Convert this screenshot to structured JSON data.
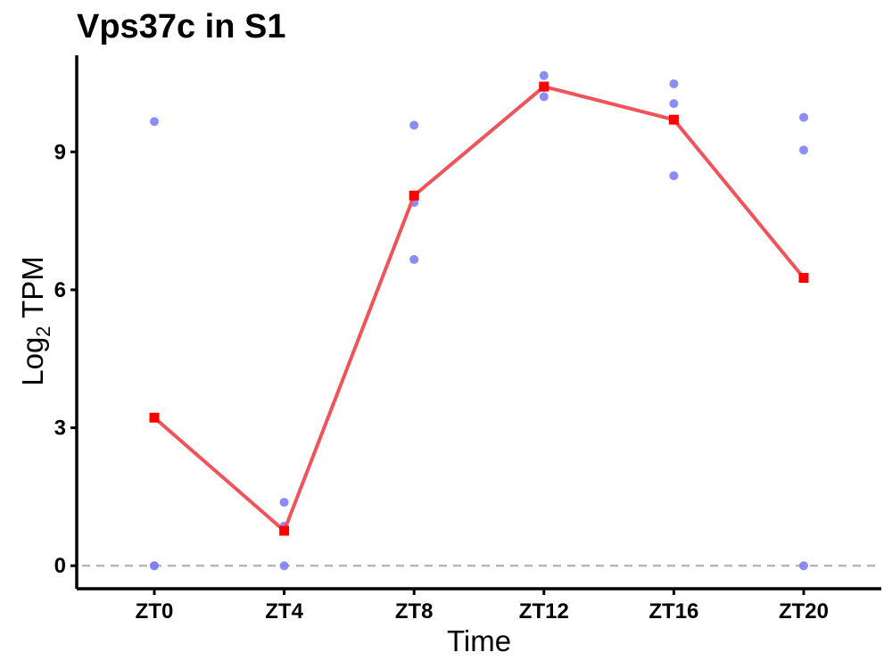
{
  "chart_data": {
    "type": "line",
    "title": "Vps37c in S1",
    "xlabel": "Time",
    "ylabel": {
      "base": "Log",
      "subscript": "2",
      "suffix": " TPM"
    },
    "categories": [
      "ZT0",
      "ZT4",
      "ZT8",
      "ZT12",
      "ZT16",
      "ZT20"
    ],
    "ylim": [
      -0.5,
      11.1
    ],
    "yticks": [
      0,
      3,
      6,
      9
    ],
    "reference_line_y": 0,
    "grid": false,
    "series": [
      {
        "kind": "mean-line",
        "color": "#f0545a",
        "marker_color": "#ff0000",
        "values": [
          3.22,
          0.76,
          8.05,
          10.42,
          9.7,
          6.26
        ]
      },
      {
        "kind": "replicate-points",
        "color": "#7f7ff5",
        "points": [
          {
            "x": "ZT0",
            "y": 9.66
          },
          {
            "x": "ZT0",
            "y": 0.0
          },
          {
            "x": "ZT0",
            "y": 0.0
          },
          {
            "x": "ZT4",
            "y": 1.38
          },
          {
            "x": "ZT4",
            "y": 0.86
          },
          {
            "x": "ZT4",
            "y": 0.0
          },
          {
            "x": "ZT8",
            "y": 9.58
          },
          {
            "x": "ZT8",
            "y": 7.9
          },
          {
            "x": "ZT8",
            "y": 6.66
          },
          {
            "x": "ZT12",
            "y": 10.66
          },
          {
            "x": "ZT12",
            "y": 10.4
          },
          {
            "x": "ZT12",
            "y": 10.2
          },
          {
            "x": "ZT16",
            "y": 10.48
          },
          {
            "x": "ZT16",
            "y": 10.05
          },
          {
            "x": "ZT16",
            "y": 8.48
          },
          {
            "x": "ZT20",
            "y": 9.75
          },
          {
            "x": "ZT20",
            "y": 9.04
          },
          {
            "x": "ZT20",
            "y": 0.0
          }
        ]
      }
    ]
  }
}
